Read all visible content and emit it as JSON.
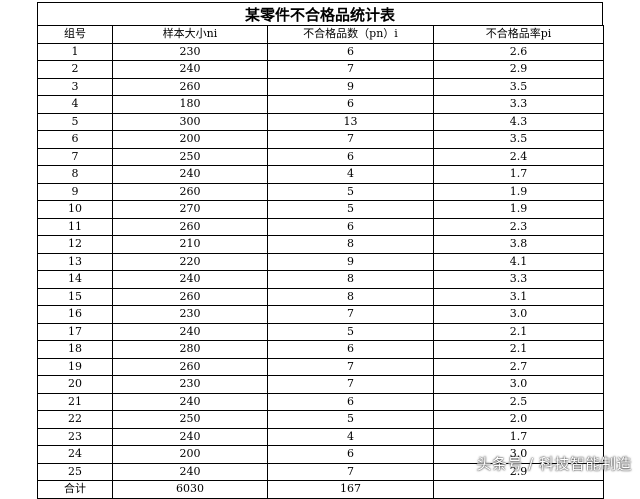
{
  "title": "某零件不合格品统计表",
  "headers": [
    "组号",
    "样本大小ni",
    "不合格品数（pn）i",
    "不合格品率pi"
  ],
  "rows": [
    [
      "1",
      "230",
      "6",
      "2.6"
    ],
    [
      "2",
      "240",
      "7",
      "2.9"
    ],
    [
      "3",
      "260",
      "9",
      "3.5"
    ],
    [
      "4",
      "180",
      "6",
      "3.3"
    ],
    [
      "5",
      "300",
      "13",
      "4.3"
    ],
    [
      "6",
      "200",
      "7",
      "3.5"
    ],
    [
      "7",
      "250",
      "6",
      "2.4"
    ],
    [
      "8",
      "240",
      "4",
      "1.7"
    ],
    [
      "9",
      "260",
      "5",
      "1.9"
    ],
    [
      "10",
      "270",
      "5",
      "1.9"
    ],
    [
      "11",
      "260",
      "6",
      "2.3"
    ],
    [
      "12",
      "210",
      "8",
      "3.8"
    ],
    [
      "13",
      "220",
      "9",
      "4.1"
    ],
    [
      "14",
      "240",
      "8",
      "3.3"
    ],
    [
      "15",
      "260",
      "8",
      "3.1"
    ],
    [
      "16",
      "230",
      "7",
      "3.0"
    ],
    [
      "17",
      "240",
      "5",
      "2.1"
    ],
    [
      "18",
      "280",
      "6",
      "2.1"
    ],
    [
      "19",
      "260",
      "7",
      "2.7"
    ],
    [
      "20",
      "230",
      "7",
      "3.0"
    ],
    [
      "21",
      "240",
      "6",
      "2.5"
    ],
    [
      "22",
      "250",
      "5",
      "2.0"
    ],
    [
      "23",
      "240",
      "4",
      "1.7"
    ],
    [
      "24",
      "200",
      "6",
      "3.0"
    ],
    [
      "25",
      "240",
      "7",
      "2.9"
    ]
  ],
  "total": [
    "合计",
    "6030",
    "167",
    ""
  ],
  "watermark": "头条号 / 科技智能制造"
}
